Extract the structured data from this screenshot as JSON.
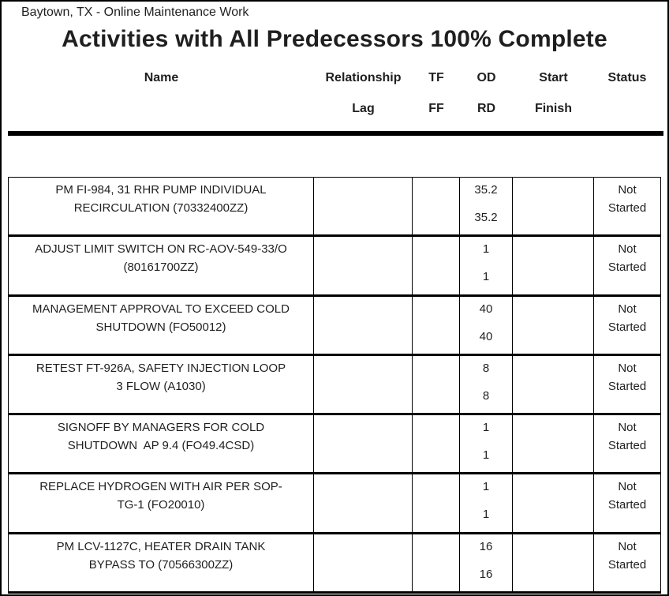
{
  "page": {
    "header_text": "Baytown, TX - Online Maintenance Work",
    "title": "Activities with All Predecessors 100% Complete"
  },
  "table": {
    "columns": [
      {
        "line1": "Name",
        "line2": ""
      },
      {
        "line1": "Relationship",
        "line2": "Lag"
      },
      {
        "line1": "TF",
        "line2": "FF"
      },
      {
        "line1": "OD",
        "line2": "RD"
      },
      {
        "line1": "Start",
        "line2": "Finish"
      },
      {
        "line1": "Status",
        "line2": ""
      }
    ],
    "rows": [
      {
        "name_line1": "PM FI-984, 31 RHR PUMP INDIVIDUAL",
        "name_line2": "RECIRCULATION (70332400ZZ)",
        "relationship": "",
        "lag": "",
        "tf": "",
        "ff": "",
        "od": "35.2",
        "rd": "35.2",
        "start": "",
        "finish": "",
        "status_line1": "Not",
        "status_line2": "Started"
      },
      {
        "name_line1": "ADJUST LIMIT SWITCH ON RC-AOV-549-33/O",
        "name_line2": "(80161700ZZ)",
        "relationship": "",
        "lag": "",
        "tf": "",
        "ff": "",
        "od": "1",
        "rd": "1",
        "start": "",
        "finish": "",
        "status_line1": "Not",
        "status_line2": "Started"
      },
      {
        "name_line1": "MANAGEMENT APPROVAL TO EXCEED COLD",
        "name_line2": "SHUTDOWN (FO50012)",
        "relationship": "",
        "lag": "",
        "tf": "",
        "ff": "",
        "od": "40",
        "rd": "40",
        "start": "",
        "finish": "",
        "status_line1": "Not",
        "status_line2": "Started"
      },
      {
        "name_line1": "RETEST FT-926A, SAFETY INJECTION LOOP",
        "name_line2": "3 FLOW (A1030)",
        "relationship": "",
        "lag": "",
        "tf": "",
        "ff": "",
        "od": "8",
        "rd": "8",
        "start": "",
        "finish": "",
        "status_line1": "Not",
        "status_line2": "Started"
      },
      {
        "name_line1": "SIGNOFF BY MANAGERS FOR COLD",
        "name_line2": "SHUTDOWN  AP 9.4 (FO49.4CSD)",
        "relationship": "",
        "lag": "",
        "tf": "",
        "ff": "",
        "od": "1",
        "rd": "1",
        "start": "",
        "finish": "",
        "status_line1": "Not",
        "status_line2": "Started"
      },
      {
        "name_line1": "REPLACE HYDROGEN WITH AIR PER SOP-",
        "name_line2": "TG-1 (FO20010)",
        "relationship": "",
        "lag": "",
        "tf": "",
        "ff": "",
        "od": "1",
        "rd": "1",
        "start": "",
        "finish": "",
        "status_line1": "Not",
        "status_line2": "Started"
      },
      {
        "name_line1": "PM LCV-1127C, HEATER DRAIN TANK",
        "name_line2": "BYPASS TO (70566300ZZ)",
        "relationship": "",
        "lag": "",
        "tf": "",
        "ff": "",
        "od": "16",
        "rd": "16",
        "start": "",
        "finish": "",
        "status_line1": "Not",
        "status_line2": "Started"
      }
    ]
  }
}
